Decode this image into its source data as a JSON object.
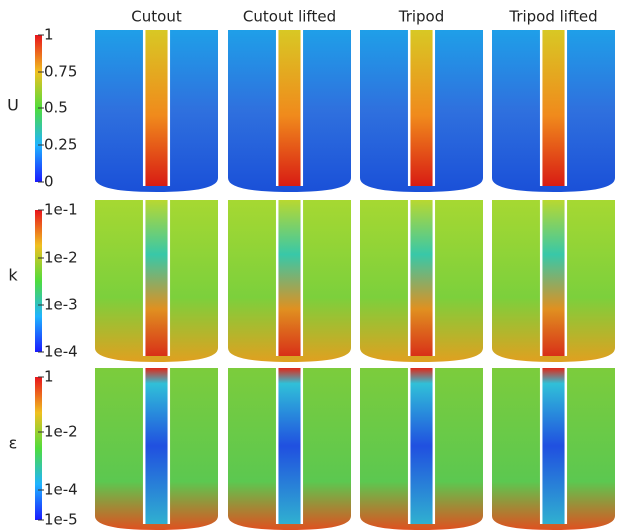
{
  "columns": [
    "Cutout",
    "Cutout lifted",
    "Tripod",
    "Tripod lifted"
  ],
  "rows": [
    {
      "label": "U",
      "ticks": [
        "1",
        "0.75",
        "0.5",
        "0.25",
        "0"
      ]
    },
    {
      "label": "k",
      "ticks": [
        "1e-1",
        "1e-2",
        "1e-3",
        "1e-4"
      ]
    },
    {
      "label": "ε",
      "ticks": [
        "1",
        "1e-2",
        "1e-4",
        "1e-5"
      ]
    }
  ]
}
